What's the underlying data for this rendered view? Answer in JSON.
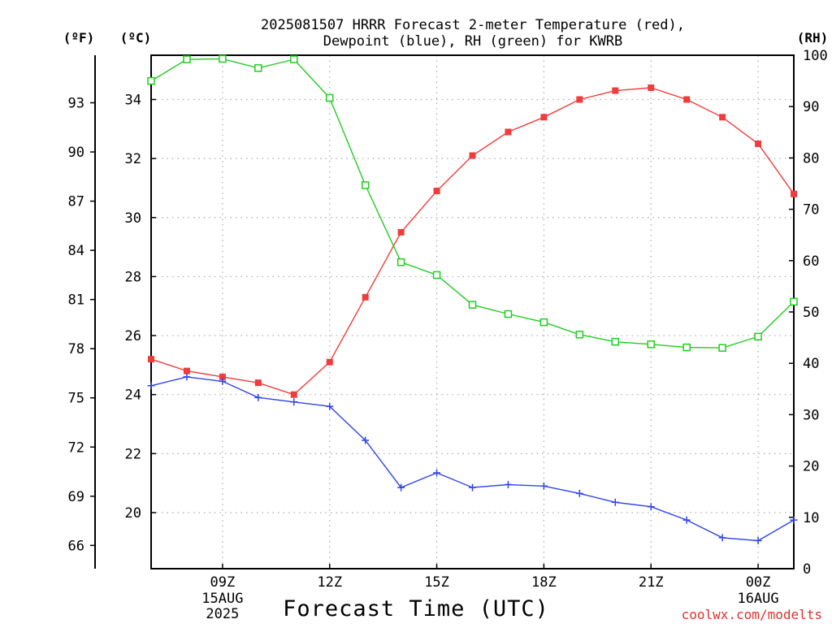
{
  "page": {
    "title_line1": "2025081507 HRRR Forecast 2-meter Temperature (red),",
    "title_line2": "Dewpoint (blue), RH (green) for KWRB",
    "unit_left_f": "(ºF)",
    "unit_left_c": "(ºC)",
    "unit_right": "(RH)",
    "xlabel": "Forecast Time (UTC)",
    "watermark": "coolwx.com/modelts"
  },
  "colors": {
    "temperature": "#f03c3c",
    "dewpoint": "#2f45e8",
    "rh": "#22cc22",
    "grid": "#aaaaaa",
    "axis": "#000000",
    "watermark": "#e03030"
  },
  "chart_data": {
    "type": "line",
    "title": "2025081507 HRRR Forecast 2-meter Temperature (red), Dewpoint (blue), RH (green) for KWRB",
    "xlabel": "Forecast Time (UTC)",
    "grid": true,
    "x": [
      "07Z",
      "08Z",
      "09Z",
      "10Z",
      "11Z",
      "12Z",
      "13Z",
      "14Z",
      "15Z",
      "16Z",
      "17Z",
      "18Z",
      "19Z",
      "20Z",
      "21Z",
      "22Z",
      "23Z",
      "00Z",
      "01Z"
    ],
    "x_ticks": [
      {
        "label": "09Z",
        "sub": [
          "15AUG",
          "2025"
        ],
        "hour": 9
      },
      {
        "label": "12Z",
        "sub": [],
        "hour": 12
      },
      {
        "label": "15Z",
        "sub": [],
        "hour": 15
      },
      {
        "label": "18Z",
        "sub": [],
        "hour": 18
      },
      {
        "label": "21Z",
        "sub": [],
        "hour": 21
      },
      {
        "label": "00Z",
        "sub": [
          "16AUG"
        ],
        "hour": 24
      }
    ],
    "x_hours_range": [
      7,
      25
    ],
    "axes": {
      "celsius": {
        "range": [
          18.1,
          35.5
        ],
        "ticks": [
          20,
          22,
          24,
          26,
          28,
          30,
          32,
          34
        ]
      },
      "fahrenheit": {
        "ticks": [
          66,
          69,
          72,
          75,
          78,
          81,
          84,
          87,
          90,
          93
        ]
      },
      "rh": {
        "range": [
          0,
          100
        ],
        "ticks": [
          0,
          10,
          20,
          30,
          40,
          50,
          60,
          70,
          80,
          90,
          100
        ]
      }
    },
    "series": [
      {
        "name": "Temperature",
        "axis": "celsius",
        "marker": "filled-square",
        "values": [
          25.2,
          24.8,
          24.6,
          24.4,
          24.0,
          25.1,
          27.3,
          29.5,
          30.9,
          32.1,
          32.9,
          33.4,
          34.0,
          34.3,
          34.4,
          34.0,
          33.4,
          32.5,
          30.8
        ]
      },
      {
        "name": "Dewpoint",
        "axis": "celsius",
        "marker": "plus",
        "values": [
          24.3,
          24.6,
          24.45,
          23.9,
          23.75,
          23.6,
          22.45,
          20.85,
          21.35,
          20.85,
          20.95,
          20.9,
          20.65,
          20.35,
          20.2,
          19.75,
          19.15,
          19.05,
          19.75
        ]
      },
      {
        "name": "RH",
        "axis": "rh",
        "marker": "open-square",
        "values": [
          95,
          99.2,
          99.3,
          97.5,
          99.2,
          91.7,
          74.7,
          59.7,
          57.2,
          51.4,
          49.6,
          48.0,
          45.6,
          44.2,
          43.7,
          43.1,
          43.0,
          45.2,
          52.0
        ]
      }
    ]
  }
}
